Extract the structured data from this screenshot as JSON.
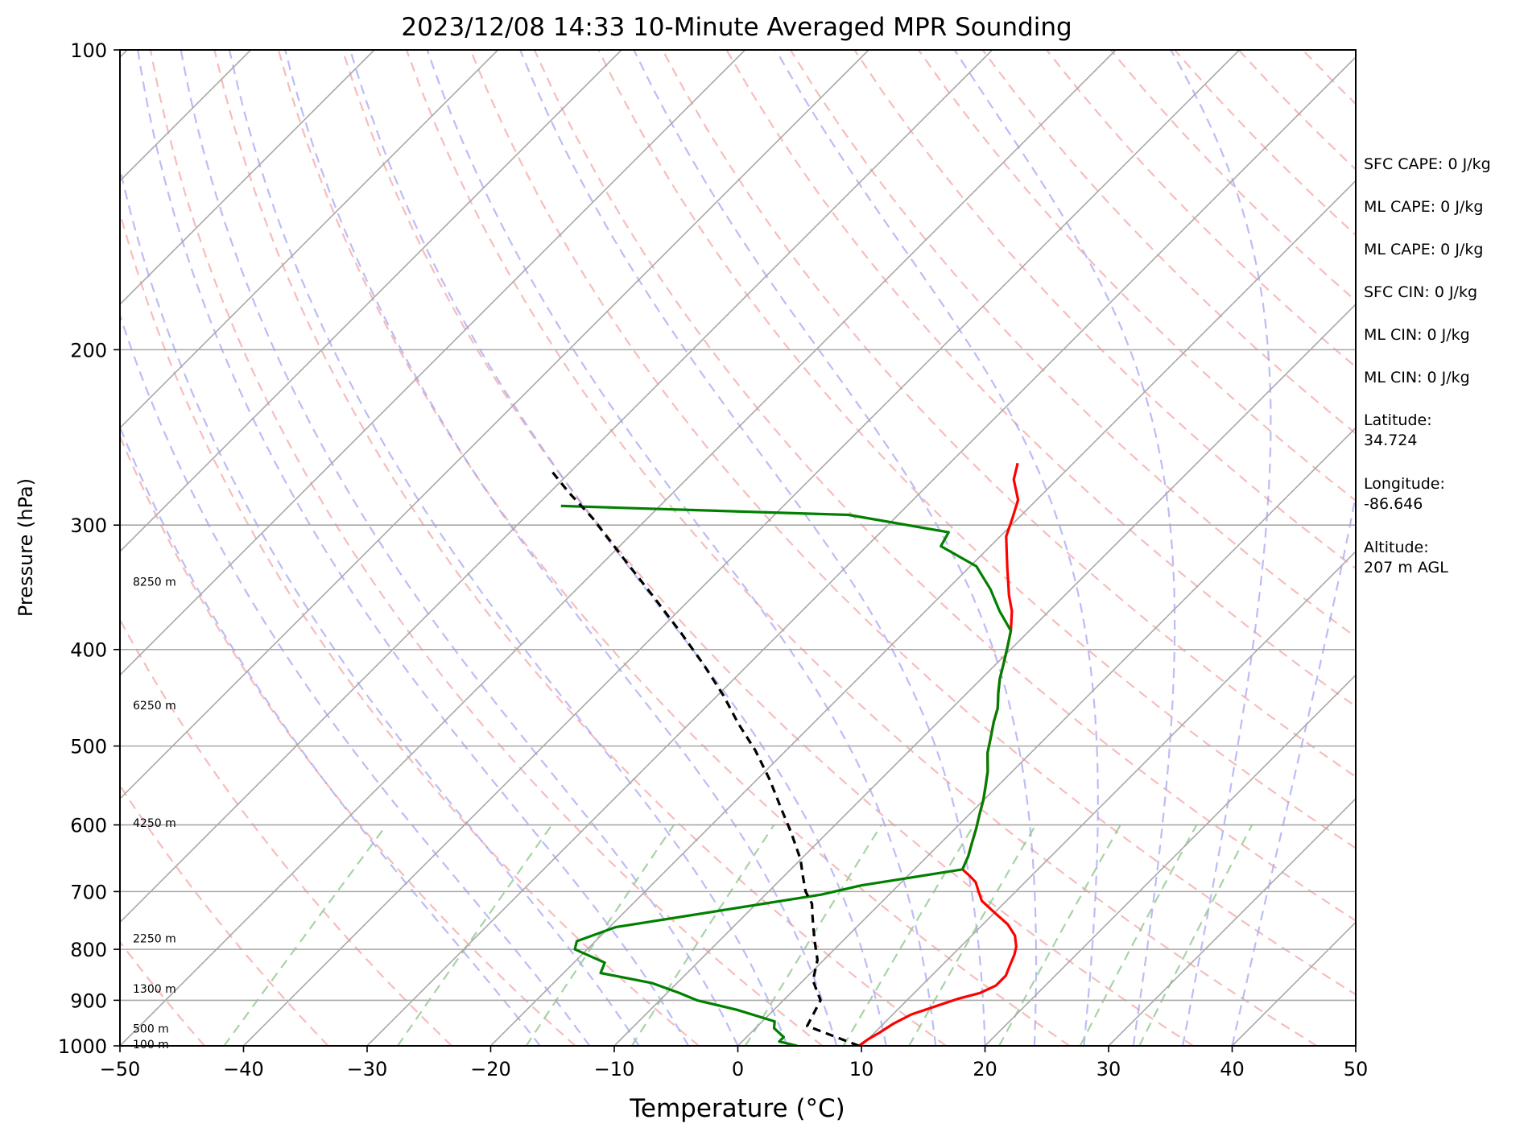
{
  "chart_data": {
    "type": "line",
    "title": "2023/12/08 14:33 10-Minute Averaged MPR Sounding",
    "xlabel": "Temperature (°C)",
    "ylabel": "Pressure (hPa)",
    "xlim": [
      -50,
      50
    ],
    "ylim": [
      1000,
      100
    ],
    "y_scale": "log",
    "x_ticks": [
      "−50",
      "−40",
      "−30",
      "−20",
      "−10",
      "0",
      "10",
      "20",
      "30",
      "40",
      "50"
    ],
    "y_ticks": [
      "100",
      "200",
      "300",
      "400",
      "500",
      "600",
      "700",
      "800",
      "900",
      "1000"
    ],
    "grid": true,
    "series": [
      {
        "role": "temperature",
        "color": "#ff0000",
        "points": [
          [
            -24.5,
            260
          ],
          [
            -23.5,
            270
          ],
          [
            -21.5,
            283
          ],
          [
            -20.5,
            295
          ],
          [
            -19.5,
            308
          ],
          [
            -17.0,
            330
          ],
          [
            -14.5,
            353
          ],
          [
            -13.0,
            366
          ],
          [
            -11.5,
            383
          ],
          [
            -10.5,
            397
          ],
          [
            -9.5,
            412
          ],
          [
            -8.5,
            428
          ],
          [
            -7.5,
            442
          ],
          [
            -6.3,
            458
          ],
          [
            -5.5,
            473
          ],
          [
            -4.5,
            490
          ],
          [
            -3.5,
            508
          ],
          [
            -2.0,
            530
          ],
          [
            -1.0,
            548
          ],
          [
            0.0,
            567
          ],
          [
            0.8,
            585
          ],
          [
            1.7,
            605
          ],
          [
            2.5,
            625
          ],
          [
            3.3,
            645
          ],
          [
            3.9,
            665
          ],
          [
            5.0,
            675
          ],
          [
            6.0,
            685
          ],
          [
            7.0,
            700
          ],
          [
            8.0,
            715
          ],
          [
            10.0,
            735
          ],
          [
            12.0,
            755
          ],
          [
            13.5,
            775
          ],
          [
            14.5,
            795
          ],
          [
            15.0,
            810
          ],
          [
            15.5,
            830
          ],
          [
            16.0,
            850
          ],
          [
            16.0,
            870
          ],
          [
            15.3,
            885
          ],
          [
            14.0,
            897
          ],
          [
            13.0,
            910
          ],
          [
            11.5,
            930
          ],
          [
            10.8,
            950
          ],
          [
            10.4,
            970
          ],
          [
            10.0,
            985
          ],
          [
            9.8,
            1000
          ]
        ]
      },
      {
        "role": "dewpoint",
        "color": "#008000",
        "points": [
          [
            -58.0,
            287
          ],
          [
            -34.0,
            293
          ],
          [
            -24.5,
            305
          ],
          [
            -24.0,
            315
          ],
          [
            -19.5,
            330
          ],
          [
            -16.5,
            348
          ],
          [
            -14.0,
            366
          ],
          [
            -11.5,
            383
          ],
          [
            -10.5,
            397
          ],
          [
            -9.5,
            412
          ],
          [
            -8.5,
            428
          ],
          [
            -7.5,
            442
          ],
          [
            -6.3,
            458
          ],
          [
            -5.5,
            473
          ],
          [
            -4.5,
            490
          ],
          [
            -3.5,
            508
          ],
          [
            -2.0,
            530
          ],
          [
            -1.0,
            548
          ],
          [
            0.0,
            567
          ],
          [
            0.8,
            585
          ],
          [
            1.7,
            605
          ],
          [
            2.5,
            625
          ],
          [
            3.3,
            645
          ],
          [
            3.9,
            665
          ],
          [
            -3.0,
            690
          ],
          [
            -5.5,
            705
          ],
          [
            -19.5,
            760
          ],
          [
            -21.5,
            785
          ],
          [
            -21.0,
            800
          ],
          [
            -17.5,
            825
          ],
          [
            -17.0,
            845
          ],
          [
            -12.0,
            865
          ],
          [
            -9.0,
            885
          ],
          [
            -7.0,
            900
          ],
          [
            -3.0,
            920
          ],
          [
            1.0,
            945
          ],
          [
            1.5,
            960
          ],
          [
            3.0,
            980
          ],
          [
            3.0,
            990
          ],
          [
            4.8,
            1000
          ]
        ]
      },
      {
        "role": "parcel",
        "color": "#000000",
        "points": [
          [
            9.8,
            1000
          ],
          [
            4.0,
            955
          ],
          [
            3.0,
            900
          ],
          [
            0.8,
            860
          ],
          [
            -0.5,
            820
          ],
          [
            -2.0,
            790
          ],
          [
            -3.5,
            760
          ],
          [
            -4.5,
            740
          ],
          [
            -5.5,
            720
          ],
          [
            -7.0,
            700
          ],
          [
            -8.5,
            675
          ],
          [
            -10.0,
            650
          ],
          [
            -13.0,
            610
          ],
          [
            -15.5,
            580
          ],
          [
            -19.0,
            540
          ],
          [
            -22.5,
            505
          ],
          [
            -26.0,
            475
          ],
          [
            -29.5,
            445
          ],
          [
            -33.5,
            415
          ],
          [
            -38.0,
            385
          ],
          [
            -43.0,
            355
          ],
          [
            -48.5,
            325
          ],
          [
            -54.5,
            295
          ],
          [
            -58.5,
            278
          ],
          [
            -62.0,
            263
          ]
        ]
      }
    ],
    "altitude_labels": [
      {
        "label": "8250 m",
        "pressure": 342
      },
      {
        "label": "6250 m",
        "pressure": 455
      },
      {
        "label": "4250 m",
        "pressure": 597
      },
      {
        "label": "2250 m",
        "pressure": 780
      },
      {
        "label": "1300 m",
        "pressure": 876
      },
      {
        "label": "500 m",
        "pressure": 961
      },
      {
        "label": "100 m",
        "pressure": 996
      }
    ],
    "skew_isotherms": true,
    "dry_adiabats": true,
    "moist_adiabats": true,
    "mixing_ratio_lines": true,
    "colors": {
      "dry_adiabat": "#f4a0a0",
      "moist_adiabat": "#a0a0f4",
      "mixing_ratio": "#90c890",
      "isotherm": "#a8a8a8",
      "isobar": "#a8a8a8"
    },
    "info_panel": [
      "SFC CAPE: 0 J/kg",
      "ML CAPE: 0 J/kg",
      "ML CAPE: 0 J/kg",
      "SFC CIN: 0 J/kg",
      "ML CIN: 0 J/kg",
      "ML CIN: 0 J/kg",
      [
        "Latitude:",
        "34.724"
      ],
      [
        "Longitude:",
        "-86.646"
      ],
      [
        "Altitude:",
        "207 m AGL"
      ]
    ]
  }
}
